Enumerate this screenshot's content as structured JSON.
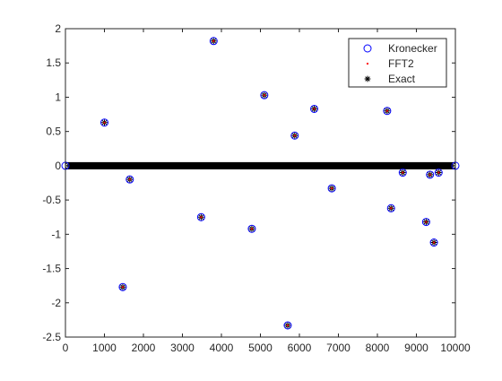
{
  "chart_data": {
    "type": "scatter",
    "xlim": [
      0,
      10000
    ],
    "ylim": [
      -2.5,
      2
    ],
    "xticks": [
      0,
      1000,
      2000,
      3000,
      4000,
      5000,
      6000,
      7000,
      8000,
      9000,
      10000
    ],
    "yticks": [
      2,
      1.5,
      1,
      0.5,
      0,
      -0.5,
      -1,
      -1.5,
      -2,
      -2.5
    ],
    "xtick_labels": [
      "0",
      "1000",
      "2000",
      "3000",
      "4000",
      "5000",
      "6000",
      "7000",
      "8000",
      "9000",
      "10000"
    ],
    "ytick_labels": [
      "2",
      "1.5",
      "1",
      "0.5",
      "0",
      "-0.5",
      "-1",
      "-1.5",
      "-2",
      "-2.5"
    ],
    "grid": false,
    "legend_position": "top-right",
    "zero_band": {
      "from": 0,
      "to": 10000,
      "value": 0
    },
    "series": [
      {
        "name": "Kronecker",
        "marker": "circle",
        "color": "#0000ff"
      },
      {
        "name": "FFT2",
        "marker": "dot",
        "color": "#ff0000"
      },
      {
        "name": "Exact",
        "marker": "asterisk",
        "color": "#000000"
      }
    ],
    "points": [
      {
        "x": 1000,
        "y": 0.63
      },
      {
        "x": 1470,
        "y": -1.77
      },
      {
        "x": 1650,
        "y": -0.2
      },
      {
        "x": 3480,
        "y": -0.75
      },
      {
        "x": 3800,
        "y": 1.82
      },
      {
        "x": 4780,
        "y": -0.92
      },
      {
        "x": 5100,
        "y": 1.03
      },
      {
        "x": 5700,
        "y": -2.33
      },
      {
        "x": 5880,
        "y": 0.44
      },
      {
        "x": 6380,
        "y": 0.83
      },
      {
        "x": 6830,
        "y": -0.33
      },
      {
        "x": 8250,
        "y": 0.8
      },
      {
        "x": 8350,
        "y": -0.62
      },
      {
        "x": 8650,
        "y": -0.1
      },
      {
        "x": 9250,
        "y": -0.82
      },
      {
        "x": 9350,
        "y": -0.13
      },
      {
        "x": 9450,
        "y": -1.12
      },
      {
        "x": 9570,
        "y": -0.1
      }
    ]
  }
}
